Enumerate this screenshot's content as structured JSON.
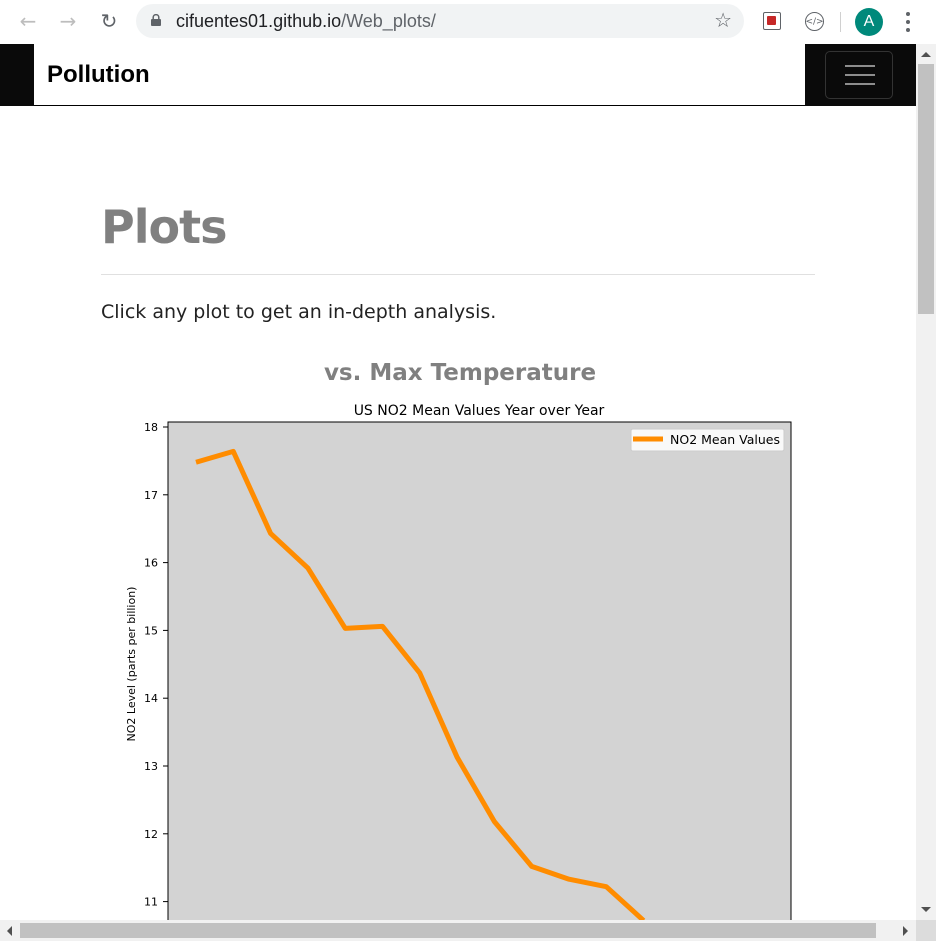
{
  "browser": {
    "url_host": "cifuentes01.github.io",
    "url_path": "/Web_plots/",
    "profile_initial": "A",
    "icons": {
      "back": "arrow-left-icon",
      "forward": "arrow-right-icon",
      "reload": "reload-icon",
      "lock": "lock-icon",
      "bookmark": "star-icon",
      "extension1": "mcafee-icon",
      "extension2": "code-extension-icon",
      "menu": "kebab-menu-icon"
    },
    "avatar_color": "#00897b"
  },
  "navbar": {
    "brand": "Pollution",
    "toggler_icon": "hamburger-icon"
  },
  "page": {
    "title": "Plots",
    "lead": "Click any plot to get an in-depth analysis.",
    "plot_heading": "vs. Max Temperature"
  },
  "chart_data": {
    "type": "line",
    "title": "US NO2 Mean Values Year over Year",
    "xlabel": "",
    "ylabel": "NO2 Level (parts per billion)",
    "ylim": [
      10.7,
      18.1
    ],
    "yticks": [
      11,
      12,
      13,
      14,
      15,
      16,
      17,
      18
    ],
    "legend_position": "top-right",
    "background": "#d3d3d3",
    "series": [
      {
        "name": "NO2 Mean Values",
        "color": "#ff8c00",
        "values": [
          17.48,
          17.64,
          16.43,
          15.92,
          15.03,
          15.06,
          14.37,
          13.13,
          12.18,
          11.52,
          11.33,
          11.22,
          10.72
        ]
      }
    ]
  }
}
